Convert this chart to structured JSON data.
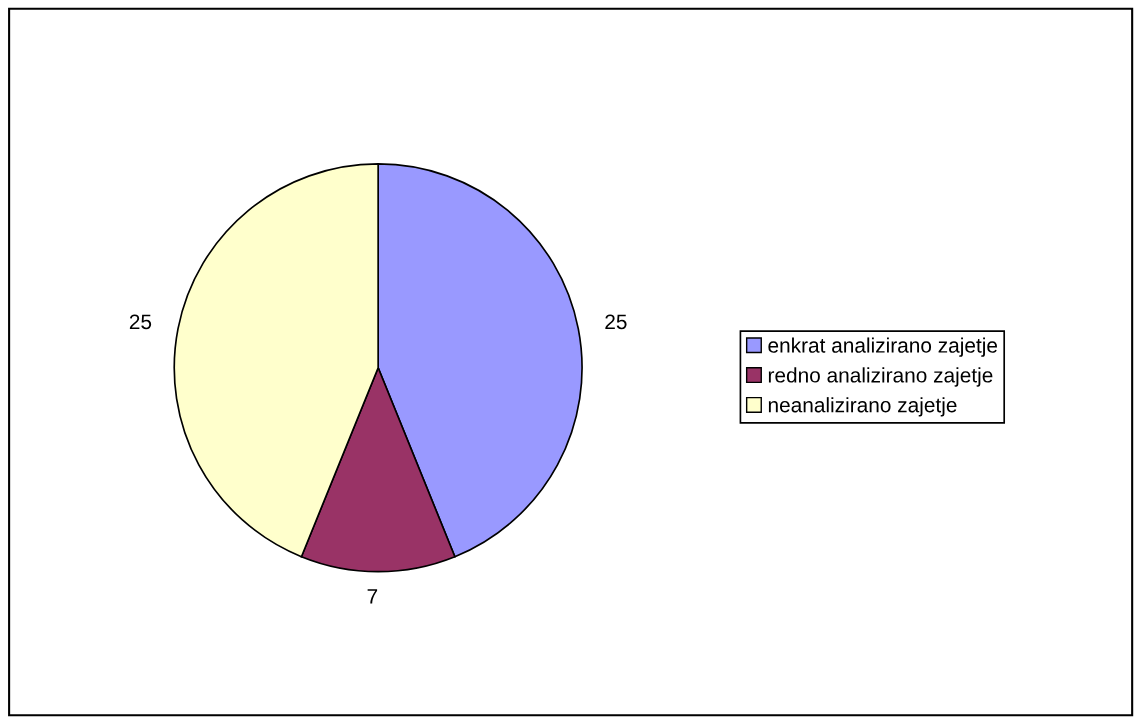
{
  "chart_data": {
    "type": "pie",
    "categories": [
      "enkrat analizirano zajetje",
      "redno analizirano zajetje",
      "neanalizirano zajetje"
    ],
    "values": [
      25,
      7,
      25
    ],
    "colors": [
      "#9999ff",
      "#993366",
      "#ffffcc"
    ],
    "data_labels": true,
    "legend": "right"
  }
}
